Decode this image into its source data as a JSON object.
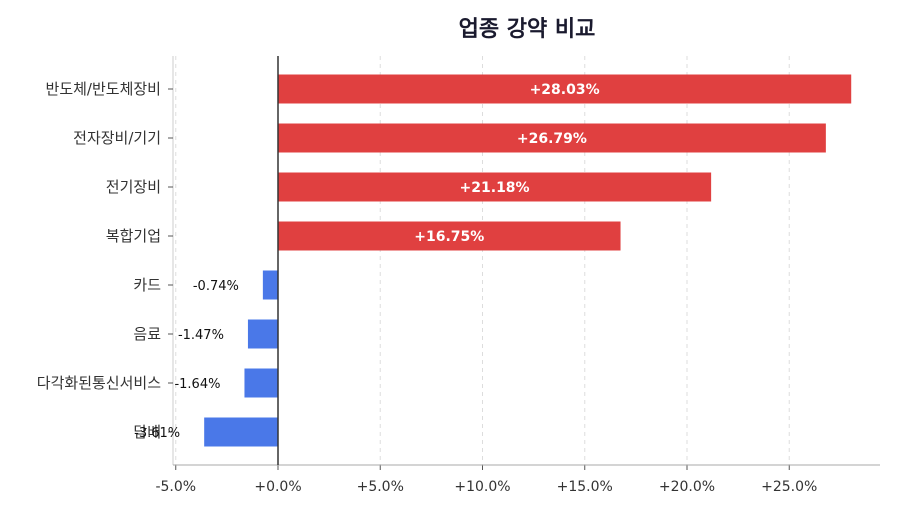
{
  "chart_data": {
    "type": "bar",
    "orientation": "horizontal",
    "title": "업종 강약 비교",
    "xlabel": "",
    "ylabel": "",
    "categories": [
      "반도체/반도체장비",
      "전자장비/기기",
      "전기장비",
      "복합기업",
      "카드",
      "음료",
      "다각화된통신서비스",
      "담배"
    ],
    "values": [
      28.03,
      26.79,
      21.18,
      16.75,
      -0.74,
      -1.47,
      -1.64,
      -3.61
    ],
    "value_labels": [
      "+28.03%",
      "+26.79%",
      "+21.18%",
      "+16.75%",
      "-0.74%",
      "-1.47%",
      "-1.64%",
      "-3.61%"
    ],
    "xlim": [
      -5.2,
      29.5
    ],
    "xticks": [
      -5,
      0,
      5,
      10,
      15,
      20,
      25
    ],
    "xtick_labels": [
      "-5.0%",
      "+0.0%",
      "+5.0%",
      "+10.0%",
      "+15.0%",
      "+20.0%",
      "+25.0%"
    ],
    "grid": "vertical dashed",
    "legend": "none",
    "colors": {
      "positive": "#e04040",
      "negative": "#4a78e8",
      "zero_line": "#333333"
    }
  }
}
